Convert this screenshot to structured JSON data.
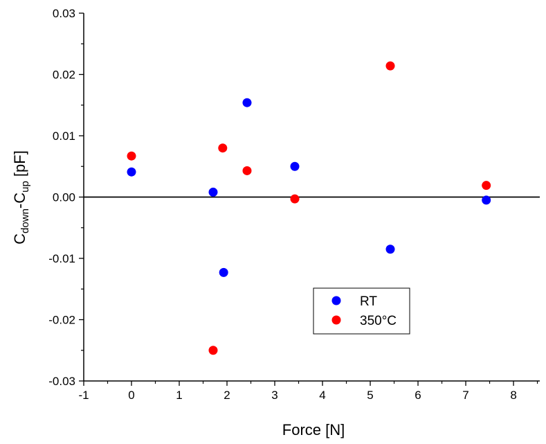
{
  "chart_data": {
    "type": "scatter",
    "title": "",
    "xlabel": "Force [N]",
    "ylabel_parts": {
      "base1": "C",
      "sub1": "down",
      "mid": "-C",
      "sub2": "up",
      "tail": " [pF]"
    },
    "ylabel": "C_down-C_up [pF]",
    "xlim": [
      -1,
      8.55
    ],
    "ylim": [
      -0.03,
      0.03
    ],
    "x_ticks": [
      -1,
      0,
      1,
      2,
      3,
      4,
      5,
      6,
      7,
      8
    ],
    "x_tick_labels": [
      "-1",
      "0",
      "1",
      "2",
      "3",
      "4",
      "5",
      "6",
      "7",
      "8"
    ],
    "y_ticks": [
      -0.03,
      -0.02,
      -0.01,
      0.0,
      0.01,
      0.02,
      0.03
    ],
    "y_tick_labels": [
      "-0.03",
      "-0.02",
      "-0.01",
      "0.00",
      "0.01",
      "0.02",
      "0.03"
    ],
    "grid": false,
    "zero_line": true,
    "legend_position": "lower-center-right",
    "series": [
      {
        "name": "RT",
        "color": "#0000ff",
        "x": [
          0,
          1.71,
          1.93,
          2.42,
          3.42,
          5.42,
          7.43
        ],
        "y": [
          0.0041,
          0.0008,
          -0.0123,
          0.0154,
          0.005,
          -0.0085,
          -0.0005
        ]
      },
      {
        "name": "350°C",
        "color": "#ff0000",
        "x": [
          0,
          1.71,
          1.91,
          2.42,
          3.42,
          5.42,
          7.43
        ],
        "y": [
          0.0067,
          -0.025,
          0.008,
          0.0043,
          -0.0003,
          0.0214,
          0.0019
        ]
      }
    ]
  }
}
